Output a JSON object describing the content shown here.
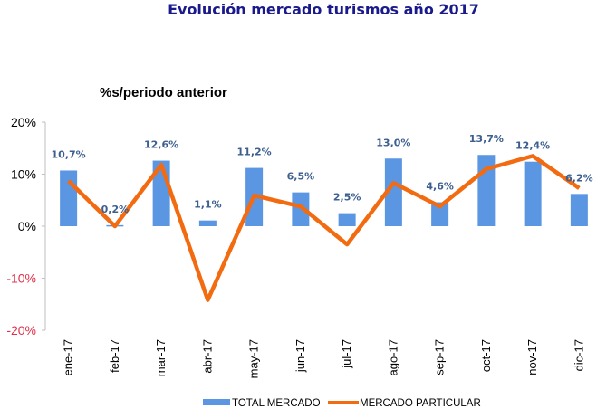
{
  "chart_data": {
    "type": "bar+line",
    "title": "Evolución mercado turismos año 2017",
    "subtitle": "%s/periodo anterior",
    "categories": [
      "ene-17",
      "feb-17",
      "mar-17",
      "abr-17",
      "may-17",
      "jun-17",
      "jul-17",
      "ago-17",
      "sep-17",
      "oct-17",
      "nov-17",
      "dic-17"
    ],
    "series": [
      {
        "name": "TOTAL MERCADO",
        "type": "bar",
        "color": "#5b96e3",
        "values": [
          10.7,
          0.2,
          12.6,
          1.1,
          11.2,
          6.5,
          2.5,
          13.0,
          4.6,
          13.7,
          12.4,
          6.2
        ],
        "labels": [
          "10,7%",
          "0,2%",
          "12,6%",
          "1,1%",
          "11,2%",
          "6,5%",
          "2,5%",
          "13,0%",
          "4,6%",
          "13,7%",
          "12,4%",
          "6,2%"
        ]
      },
      {
        "name": "MERCADO PARTICULAR",
        "type": "line",
        "color": "#f26b10",
        "values": [
          8.7,
          0.0,
          11.8,
          -14.2,
          5.9,
          3.8,
          -3.5,
          8.3,
          3.8,
          11.0,
          13.5,
          7.3
        ]
      }
    ],
    "yticks": [
      20,
      10,
      0,
      -10,
      -20
    ],
    "ytick_labels": [
      "20%",
      "10%",
      "0%",
      "-10%",
      "-20%"
    ],
    "ylim": [
      -20,
      20
    ],
    "negative_tick_color": "#e0304a",
    "positive_tick_color": "#000000",
    "grid": false,
    "legend_position": "bottom",
    "xlabel": "",
    "ylabel": ""
  }
}
